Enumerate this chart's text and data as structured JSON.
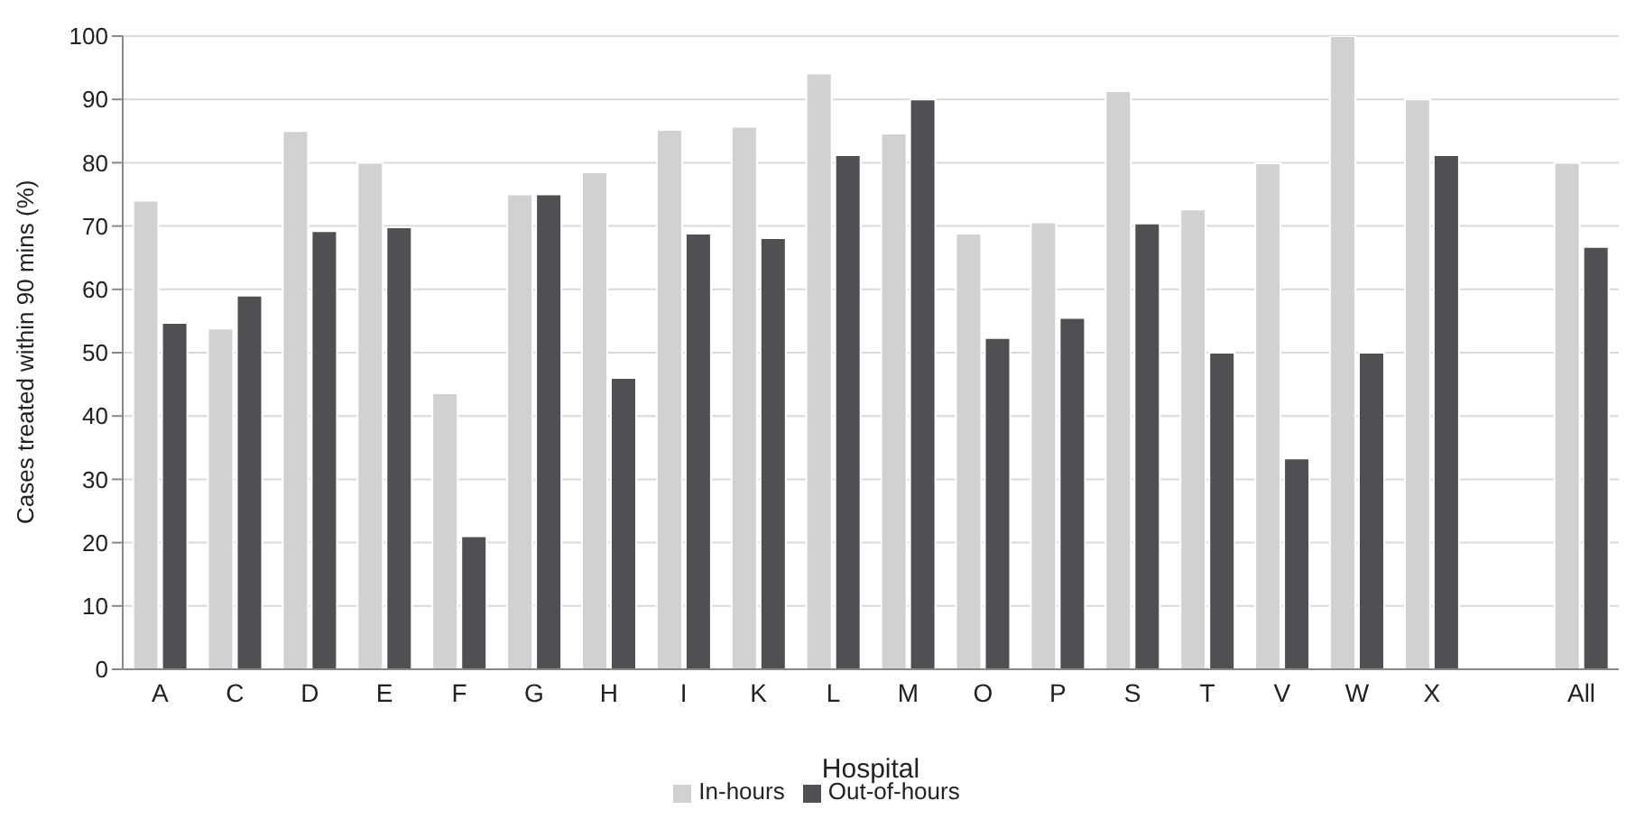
{
  "chart_data": {
    "type": "bar",
    "xlabel": "Hospital",
    "ylabel": "Cases treated within 90 mins (%)",
    "categories": [
      "A",
      "C",
      "D",
      "E",
      "F",
      "G",
      "H",
      "I",
      "K",
      "L",
      "M",
      "O",
      "P",
      "S",
      "T",
      "V",
      "W",
      "X",
      null,
      "All"
    ],
    "series": [
      {
        "name": "In-hours",
        "color": "#d0d1d3",
        "values": [
          74,
          53.8,
          85,
          80,
          43.6,
          75,
          78.5,
          85.2,
          85.7,
          94.1,
          84.6,
          68.8,
          70.6,
          91.3,
          72.6,
          79.9,
          100,
          90,
          null,
          80
        ]
      },
      {
        "name": "Out-of-hours",
        "color": "#4f5054",
        "values": [
          54.7,
          59,
          69.2,
          69.8,
          21,
          75,
          46,
          68.8,
          68.1,
          81.2,
          90,
          52.3,
          55.5,
          70.4,
          50,
          33.3,
          50,
          81.2,
          null,
          66.7
        ]
      }
    ],
    "ylim": [
      0,
      100
    ],
    "yticks": [
      0,
      10,
      20,
      30,
      40,
      50,
      60,
      70,
      80,
      90,
      100
    ],
    "grid": "y",
    "legend": "bottom"
  }
}
